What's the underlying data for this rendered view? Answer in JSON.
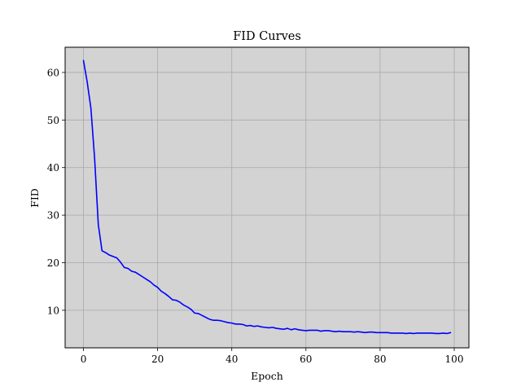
{
  "chart_data": {
    "type": "line",
    "title": "FID Curves",
    "xlabel": "Epoch",
    "ylabel": "FID",
    "xlim": [
      -4.95,
      103.95
    ],
    "ylim": [
      2.1,
      65.3
    ],
    "xticks": [
      0,
      20,
      40,
      60,
      80,
      100
    ],
    "yticks": [
      10,
      20,
      30,
      40,
      50,
      60
    ],
    "grid": true,
    "colors": {
      "plot_background": "#d3d3d3",
      "grid": "#a9a9a9",
      "line": "#0000ff",
      "axes": "#000000"
    },
    "series": [
      {
        "color": "#0000ff",
        "x": [
          0,
          1,
          2,
          3,
          4,
          5,
          6,
          7,
          8,
          9,
          10,
          11,
          12,
          13,
          14,
          15,
          16,
          17,
          18,
          19,
          20,
          21,
          22,
          23,
          24,
          25,
          26,
          27,
          28,
          29,
          30,
          31,
          32,
          33,
          34,
          35,
          36,
          37,
          38,
          39,
          40,
          41,
          42,
          43,
          44,
          45,
          46,
          47,
          48,
          49,
          50,
          51,
          52,
          53,
          54,
          55,
          56,
          57,
          58,
          59,
          60,
          61,
          62,
          63,
          64,
          65,
          66,
          67,
          68,
          69,
          70,
          71,
          72,
          73,
          74,
          75,
          76,
          77,
          78,
          79,
          80,
          81,
          82,
          83,
          84,
          85,
          86,
          87,
          88,
          89,
          90,
          91,
          92,
          93,
          94,
          95,
          96,
          97,
          98,
          99
        ],
        "values": [
          62.5,
          58.0,
          52.5,
          42.0,
          28.0,
          22.5,
          22.1,
          21.6,
          21.3,
          21.0,
          20.1,
          19.0,
          18.8,
          18.2,
          18.0,
          17.5,
          17.0,
          16.5,
          16.0,
          15.3,
          14.8,
          14.0,
          13.5,
          12.9,
          12.2,
          12.1,
          11.7,
          11.1,
          10.7,
          10.2,
          9.4,
          9.3,
          8.9,
          8.5,
          8.1,
          7.9,
          7.9,
          7.8,
          7.6,
          7.4,
          7.3,
          7.1,
          7.1,
          7.0,
          6.7,
          6.8,
          6.6,
          6.7,
          6.5,
          6.4,
          6.3,
          6.4,
          6.2,
          6.1,
          6.0,
          6.2,
          5.9,
          6.1,
          5.9,
          5.8,
          5.7,
          5.8,
          5.8,
          5.8,
          5.6,
          5.7,
          5.7,
          5.6,
          5.5,
          5.6,
          5.5,
          5.5,
          5.5,
          5.4,
          5.5,
          5.4,
          5.3,
          5.4,
          5.4,
          5.3,
          5.3,
          5.3,
          5.3,
          5.2,
          5.2,
          5.2,
          5.2,
          5.1,
          5.2,
          5.1,
          5.2,
          5.2,
          5.2,
          5.2,
          5.2,
          5.1,
          5.1,
          5.2,
          5.1,
          5.3
        ]
      }
    ]
  }
}
